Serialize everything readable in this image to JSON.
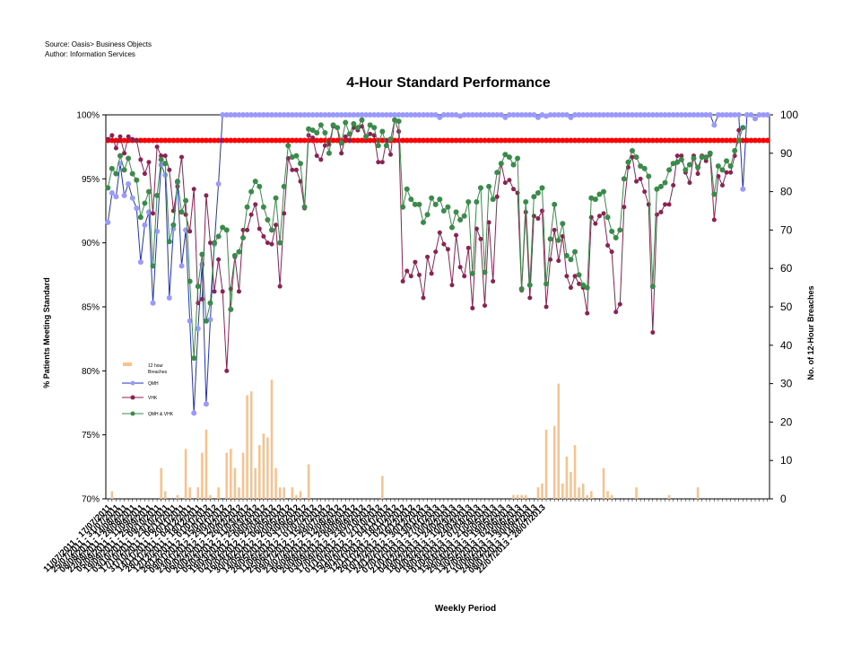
{
  "source_line": "Source: Oasis> Business Objects",
  "author_line": "Author: Information Services",
  "chart_data": {
    "type": "line",
    "title": "4-Hour Standard Performance",
    "xlabel": "Weekly Period",
    "ylabel": "% Patients Meeting Standard",
    "y2label": "No. of 12-Hour Breaches",
    "ylim": [
      0.7,
      1.0
    ],
    "y_ticks": [
      "70%",
      "75%",
      "80%",
      "85%",
      "90%",
      "95%",
      "100%"
    ],
    "y2lim": [
      0,
      100
    ],
    "y2_ticks": [
      "0",
      "10",
      "20",
      "30",
      "40",
      "50",
      "60",
      "70",
      "80",
      "90",
      "100"
    ],
    "grid": false,
    "legend_position": "inside-left",
    "colors": {
      "breaches": "#f9c18e",
      "qmh": "#2233bb",
      "qmh_marker": "#9999ff",
      "vhk": "#8b2252",
      "combined": "#3a8a4a",
      "target": "#ff0000"
    },
    "legend": [
      "12 hour Breaches",
      "QMH",
      "VHK",
      "QMH & VHK"
    ],
    "target_value": 0.98,
    "x_tick_labels": [
      "11/07/2011 - 17/07/2011",
      "25/07/2011 - 31/07/2011",
      "08/08/2011 - 14/08/2011",
      "22/08/2011 - 28/08/2011",
      "05/09/2011 - 11/09/2011",
      "19/09/2011 - 25/09/2011",
      "03/10/2011 - 09/10/2011",
      "17/10/2011 - 23/10/2011",
      "31/10/2011 - 06/11/2011",
      "14/11/2011 - 20/11/2011",
      "28/11/2011 - 04/12/2011",
      "12/12/2011 - 18/12/2011",
      "26/12/2011 - 01/01/2012",
      "09/01/2012 - 15/01/2012",
      "23/01/2012 - 29/01/2012",
      "06/02/2012 - 12/02/2012",
      "20/02/2012 - 26/02/2012",
      "05/03/2012 - 11/03/2012",
      "19/03/2012 - 25/03/2012",
      "02/04/2012 - 08/04/2012",
      "16/04/2012 - 22/04/2012",
      "30/04/2012 - 06/05/2012",
      "14/05/2012 - 20/05/2012",
      "28/05/2012 - 03/06/2012",
      "11/06/2012 - 17/06/2012",
      "25/06/2012 - 01/07/2012",
      "09/07/2012 - 15/07/2012",
      "23/07/2012 - 29/07/2012",
      "06/08/2012 - 12/08/2012",
      "20/08/2012 - 26/08/2012",
      "03/09/2012 - 09/09/2012",
      "17/09/2012 - 23/09/2012",
      "01/10/2012 - 07/10/2012",
      "15/10/2012 - 21/10/2012",
      "29/10/2012 - 04/11/2012",
      "12/11/2012 - 18/11/2012",
      "26/11/2012 - 02/12/2012",
      "10/12/2012 - 16/12/2012",
      "24/12/2012 - 30/12/2012",
      "07/01/2013 - 13/01/2013",
      "21/01/2013 - 27/01/2013",
      "04/02/2013 - 10/02/2013",
      "18/02/2013 - 24/02/2013",
      "04/03/2013 - 10/03/2013",
      "18/03/2013 - 24/03/2013",
      "01/04/2013 - 07/04/2013",
      "15/04/2013 - 21/04/2013",
      "29/04/2013 - 05/05/2013",
      "13/05/2013 - 19/05/2013",
      "27/05/2013 - 02/06/2013",
      "10/06/2013 - 16/06/2013",
      "24/06/2013 - 30/06/2013",
      "08/07/2013 - 14/07/2013",
      "22/07/2013 - 28/07/2013"
    ],
    "series": [
      {
        "name": "12 hour Breaches",
        "kind": "bar",
        "axis": "y2",
        "values": [
          0,
          2,
          0,
          0,
          0,
          0,
          0,
          0,
          0,
          0,
          0,
          0,
          0,
          8,
          2,
          0,
          0,
          1,
          0,
          13,
          3,
          0,
          3,
          12,
          18,
          1,
          0,
          3,
          0,
          12,
          13,
          8,
          3,
          12,
          27,
          28,
          8,
          14,
          17,
          16,
          31,
          8,
          3,
          3,
          0,
          3,
          1,
          2,
          0,
          9,
          0,
          0,
          0,
          0,
          0,
          0,
          0,
          0,
          0,
          0,
          0,
          0,
          0,
          0,
          0,
          0,
          0,
          6,
          0,
          0,
          0,
          0,
          0,
          0,
          0,
          0,
          0,
          0,
          0,
          0,
          0,
          0,
          0,
          0,
          0,
          0,
          0,
          0,
          0,
          0,
          0,
          0,
          0,
          0,
          0,
          0,
          0,
          0,
          0,
          1,
          1,
          1,
          1,
          0,
          0,
          3,
          4,
          18,
          0,
          19,
          30,
          4,
          11,
          7,
          14,
          3,
          4,
          1,
          2,
          0,
          0,
          8,
          2,
          1,
          0,
          0,
          0,
          0,
          0,
          3,
          0,
          0,
          0,
          0,
          0,
          0,
          0,
          1,
          0,
          0,
          0,
          0,
          0,
          0,
          3,
          0,
          0,
          0,
          0,
          0,
          0,
          0,
          0,
          0,
          0,
          0,
          0,
          0,
          0,
          0
        ]
      },
      {
        "name": "QMH",
        "kind": "line",
        "axis": "y1",
        "values": [
          0.916,
          0.939,
          0.936,
          0.962,
          0.937,
          0.946,
          0.935,
          0.927,
          0.885,
          0.914,
          0.924,
          0.853,
          0.909,
          0.961,
          0.953,
          0.857,
          0.911,
          0.947,
          0.882,
          0.91,
          0.839,
          0.767,
          0.833,
          0.883,
          0.774,
          0.84,
          0.899,
          0.946,
          1,
          1,
          1,
          1,
          1,
          1,
          1,
          1,
          1,
          1,
          1,
          1,
          1,
          1,
          1,
          1,
          1,
          1,
          1,
          1,
          1,
          1,
          1,
          1,
          1,
          1,
          1,
          1,
          1,
          1,
          1,
          1,
          1,
          1,
          1,
          1,
          1,
          1,
          1,
          1,
          1,
          1,
          1,
          1,
          1,
          1,
          1,
          1,
          1,
          1,
          1,
          1,
          1,
          0.998,
          1,
          1,
          1,
          1,
          0.999,
          1,
          1,
          1,
          1,
          1,
          1,
          1,
          1,
          1,
          1,
          0.998,
          1,
          1,
          1,
          1,
          1,
          1,
          1,
          0.998,
          1,
          0.999,
          1,
          1,
          1,
          1,
          1,
          0.998,
          1,
          1,
          1,
          1,
          1,
          1,
          1,
          1,
          1,
          1,
          1,
          1,
          1,
          1,
          1,
          1,
          1,
          1,
          1,
          1,
          1,
          1,
          1,
          1,
          1,
          1,
          1,
          1,
          1,
          1,
          1,
          1,
          1,
          1,
          0.992,
          1,
          1,
          1,
          1,
          1,
          1,
          0.942,
          1,
          1,
          0.997,
          1,
          1,
          1
        ]
      },
      {
        "name": "VHK",
        "kind": "line",
        "axis": "y1",
        "values": [
          0.981,
          0.984,
          0.974,
          0.983,
          0.97,
          0.983,
          0.981,
          0.98,
          0.965,
          0.954,
          0.963,
          0.923,
          0.975,
          0.968,
          0.968,
          0.957,
          0.925,
          0.944,
          0.967,
          0.922,
          0.909,
          0.942,
          0.853,
          0.856,
          0.937,
          0.9,
          0.862,
          0.887,
          0.862,
          0.8,
          0.864,
          0.889,
          0.862,
          0.91,
          0.91,
          0.922,
          0.93,
          0.911,
          0.905,
          0.9,
          0.899,
          0.914,
          0.866,
          0.923,
          0.966,
          0.957,
          0.957,
          0.948,
          0.927,
          0.984,
          0.982,
          0.968,
          0.965,
          0.976,
          0.977,
          0.991,
          0.99,
          0.97,
          0.983,
          0.98,
          0.99,
          0.988,
          0.991,
          0.982,
          0.985,
          0.984,
          0.963,
          0.963,
          0.98,
          0.969,
          0.996,
          0.987,
          0.87,
          0.878,
          0.874,
          0.885,
          0.875,
          0.857,
          0.889,
          0.876,
          0.893,
          0.908,
          0.899,
          0.895,
          0.867,
          0.906,
          0.881,
          0.874,
          0.896,
          0.849,
          0.911,
          0.903,
          0.851,
          0.916,
          0.87,
          0.936,
          0.962,
          0.947,
          0.949,
          0.942,
          0.939,
          0.863,
          0.924,
          0.857,
          0.921,
          0.919,
          0.925,
          0.85,
          0.887,
          0.91,
          0.886,
          0.905,
          0.874,
          0.865,
          0.874,
          0.868,
          0.865,
          0.845,
          0.92,
          0.915,
          0.921,
          0.923,
          0.898,
          0.893,
          0.846,
          0.852,
          0.928,
          0.959,
          0.967,
          0.948,
          0.95,
          0.94,
          0.93,
          0.83,
          0.922,
          0.924,
          0.93,
          0.93,
          0.945,
          0.968,
          0.968,
          0.955,
          0.947,
          0.968,
          0.954,
          0.968,
          0.964,
          0.969,
          0.918,
          0.952,
          0.945,
          0.955,
          0.955,
          0.968,
          0.988,
          0.99
        ]
      },
      {
        "name": "QMH & VHK",
        "kind": "line",
        "axis": "y1",
        "values": [
          0.943,
          0.958,
          0.954,
          0.968,
          0.957,
          0.966,
          0.954,
          0.949,
          0.92,
          0.931,
          0.94,
          0.882,
          0.937,
          0.965,
          0.962,
          0.901,
          0.914,
          0.948,
          0.924,
          0.933,
          0.87,
          0.81,
          0.866,
          0.891,
          0.839,
          0.853,
          0.9,
          0.905,
          0.912,
          0.91,
          0.848,
          0.89,
          0.893,
          0.904,
          0.928,
          0.94,
          0.948,
          0.944,
          0.928,
          0.918,
          0.91,
          0.935,
          0.9,
          0.944,
          0.976,
          0.967,
          0.968,
          0.962,
          0.928,
          0.989,
          0.988,
          0.986,
          0.992,
          0.986,
          0.97,
          0.992,
          0.99,
          0.978,
          0.994,
          0.985,
          0.993,
          0.99,
          0.996,
          0.983,
          0.992,
          0.99,
          0.976,
          0.987,
          0.976,
          0.981,
          0.996,
          0.995,
          0.928,
          0.942,
          0.934,
          0.93,
          0.93,
          0.916,
          0.922,
          0.935,
          0.93,
          0.934,
          0.925,
          0.928,
          0.912,
          0.924,
          0.918,
          0.921,
          0.932,
          0.876,
          0.932,
          0.943,
          0.877,
          0.944,
          0.934,
          0.955,
          0.962,
          0.969,
          0.967,
          0.961,
          0.966,
          0.864,
          0.932,
          0.867,
          0.936,
          0.939,
          0.943,
          0.868,
          0.903,
          0.93,
          0.902,
          0.915,
          0.89,
          0.887,
          0.893,
          0.875,
          0.867,
          0.865,
          0.935,
          0.934,
          0.938,
          0.94,
          0.92,
          0.909,
          0.904,
          0.91,
          0.95,
          0.963,
          0.972,
          0.967,
          0.96,
          0.958,
          0.952,
          0.866,
          0.942,
          0.944,
          0.947,
          0.957,
          0.962,
          0.963,
          0.965,
          0.957,
          0.961,
          0.966,
          0.959,
          0.967,
          0.967,
          0.97,
          0.938,
          0.96,
          0.957,
          0.964,
          0.96,
          0.972,
          0.98,
          0.99
        ]
      }
    ]
  }
}
